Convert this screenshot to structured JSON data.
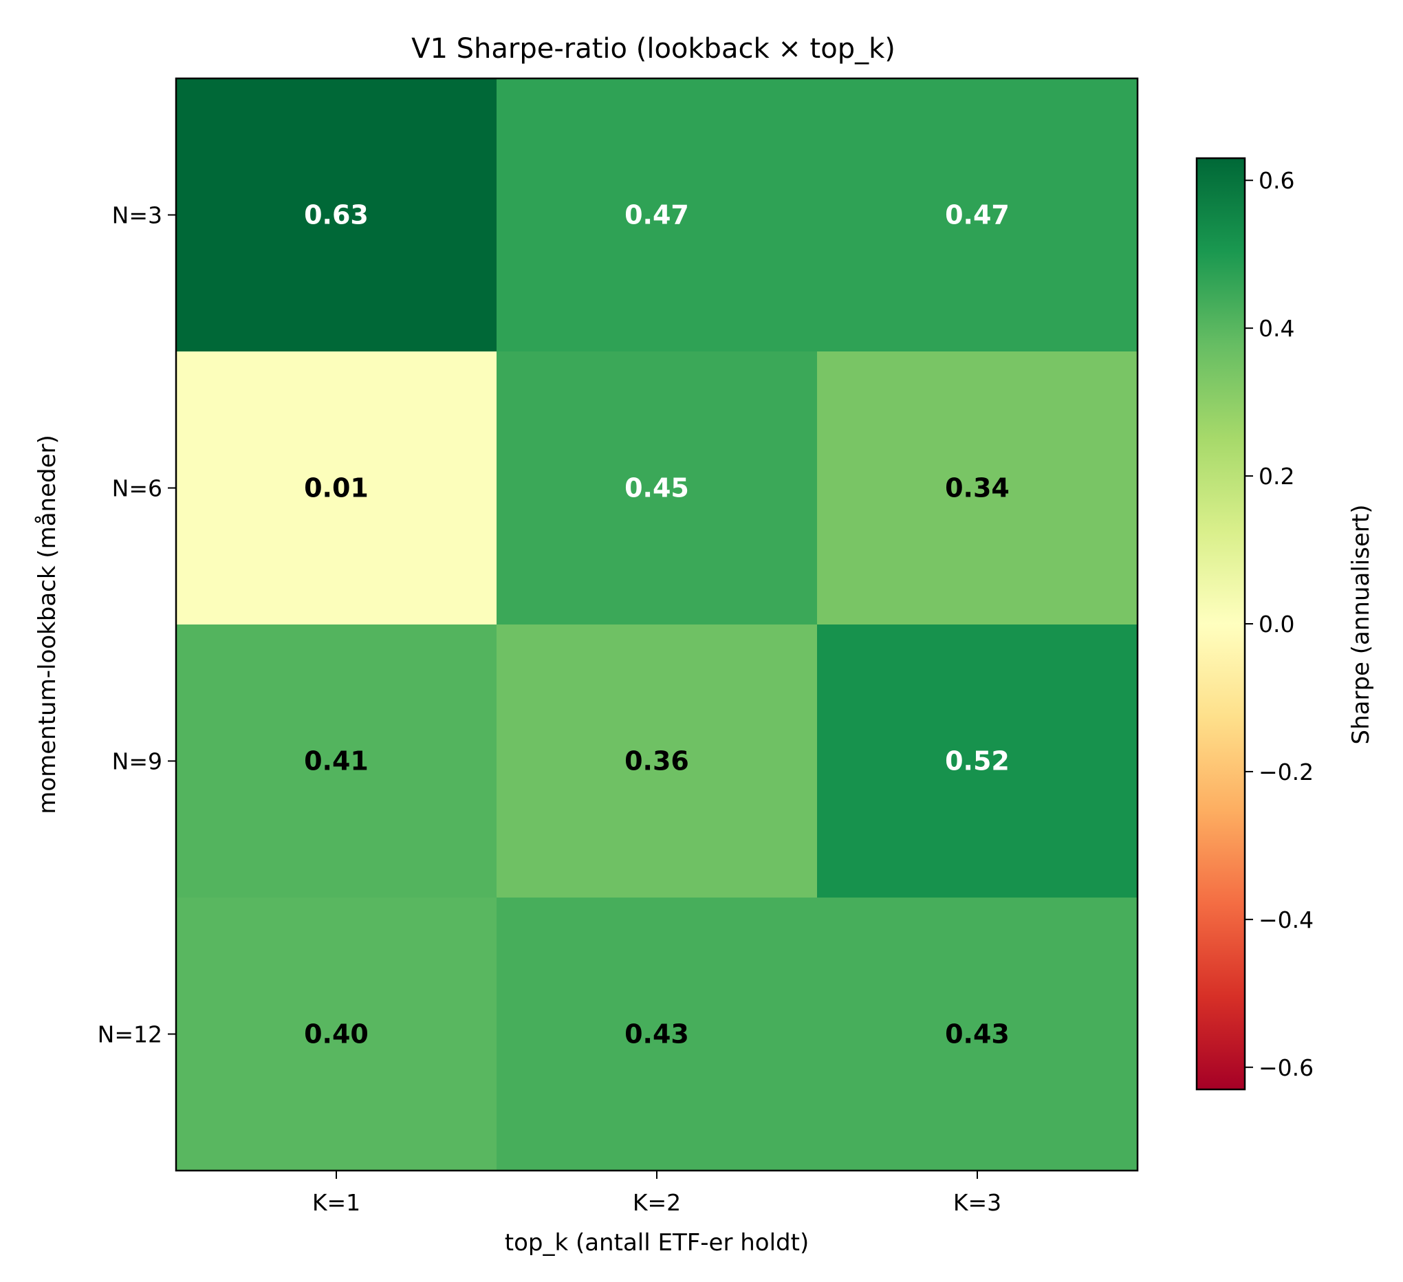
{
  "chart_data": {
    "type": "heatmap",
    "title": "V1 Sharpe-ratio (lookback × top_k)",
    "xlabel": "top_k (antall ETF-er holdt)",
    "ylabel": "momentum-lookback (måneder)",
    "x_categories": [
      "K=1",
      "K=2",
      "K=3"
    ],
    "y_categories": [
      "N=3",
      "N=6",
      "N=9",
      "N=12"
    ],
    "values": [
      [
        0.63,
        0.47,
        0.47
      ],
      [
        0.01,
        0.45,
        0.34
      ],
      [
        0.41,
        0.36,
        0.52
      ],
      [
        0.4,
        0.43,
        0.43
      ]
    ],
    "value_labels": [
      [
        "0.63",
        "0.47",
        "0.47"
      ],
      [
        "0.01",
        "0.45",
        "0.34"
      ],
      [
        "0.41",
        "0.36",
        "0.52"
      ],
      [
        "0.40",
        "0.43",
        "0.43"
      ]
    ],
    "colormap": "RdYlGn",
    "colorbar": {
      "label": "Sharpe (annualisert)",
      "range": [
        -0.63,
        0.63
      ],
      "ticks": [
        0.6,
        0.4,
        0.2,
        0.0,
        -0.2,
        -0.4,
        -0.6
      ],
      "tick_labels": [
        "0.6",
        "0.4",
        "0.2",
        "0.0",
        "−0.2",
        "−0.4",
        "−0.6"
      ],
      "colors": [
        "#a50026",
        "#d73027",
        "#f46d43",
        "#fdae61",
        "#fee08b",
        "#ffffbf",
        "#d9ef8b",
        "#a6d96a",
        "#66bd63",
        "#1a9850",
        "#006837"
      ]
    },
    "grid": false
  }
}
